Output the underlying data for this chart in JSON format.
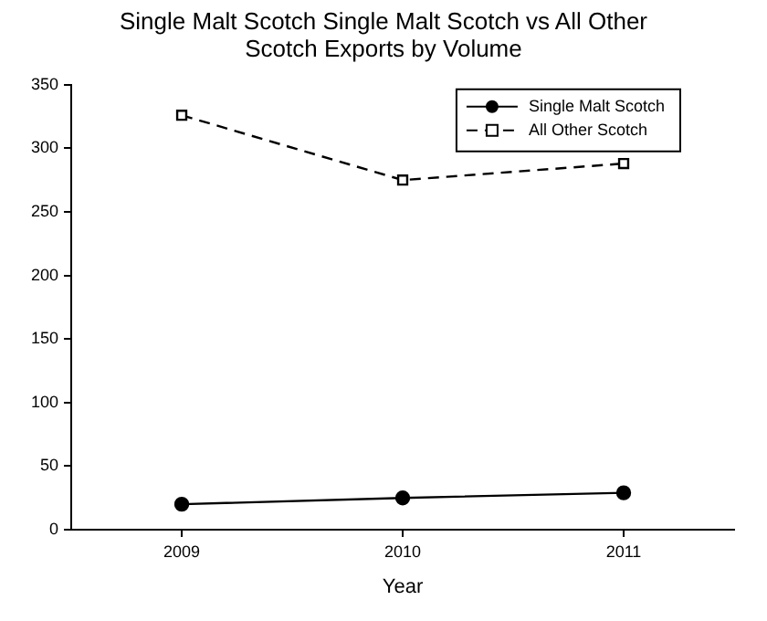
{
  "chart_data": {
    "type": "line",
    "title": "Single Malt Scotch Single Malt Scotch vs All Other Scotch Exports by Volume",
    "xlabel": "Year",
    "x": [
      2009,
      2010,
      2011
    ],
    "xlim": [
      2008.5,
      2011.5
    ],
    "xticks": [
      2009,
      2010,
      2011
    ],
    "ylim": [
      0,
      350
    ],
    "yticks": [
      0,
      50,
      100,
      150,
      200,
      250,
      300,
      350
    ],
    "grid": false,
    "legend": "top right",
    "series": [
      {
        "name": "Single Malt Scotch",
        "color": "#000000",
        "values": [
          20,
          25,
          29
        ],
        "marker": "circle",
        "line_style": "solid"
      },
      {
        "name": "All Other Scotch",
        "color": "#000000",
        "values": [
          326,
          275,
          288
        ],
        "marker": "square",
        "line_style": "dashed"
      }
    ]
  }
}
